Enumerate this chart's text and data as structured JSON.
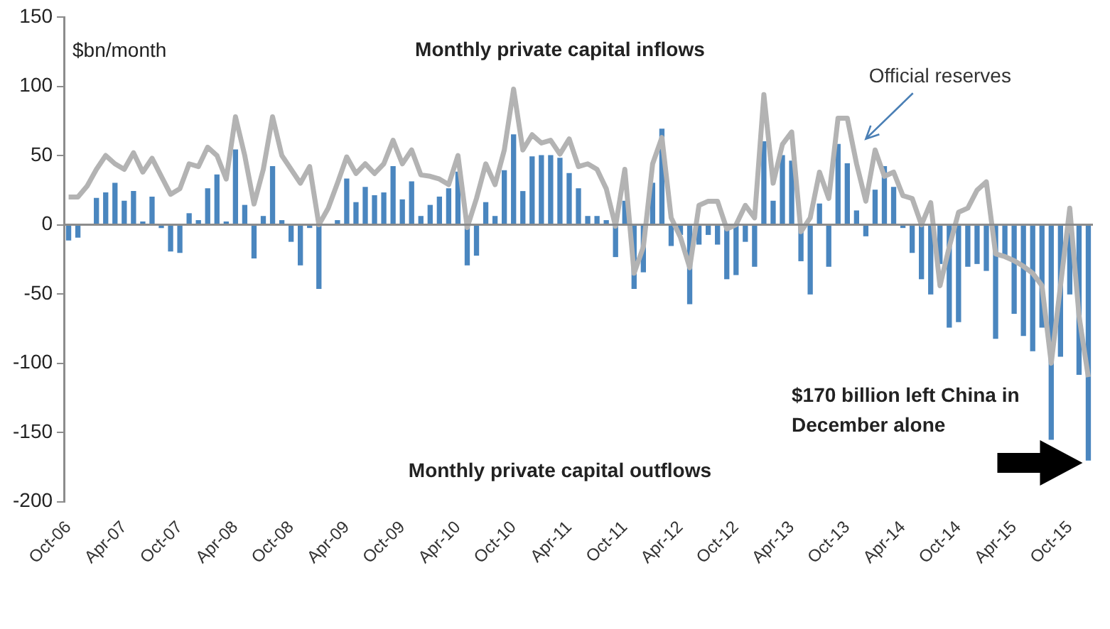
{
  "chart_data": {
    "type": "bar",
    "categories": [
      "Oct-06",
      null,
      null,
      null,
      null,
      null,
      "Apr-07",
      null,
      null,
      null,
      null,
      null,
      "Oct-07",
      null,
      null,
      null,
      null,
      null,
      "Apr-08",
      null,
      null,
      null,
      null,
      null,
      "Oct-08",
      null,
      null,
      null,
      null,
      null,
      "Apr-09",
      null,
      null,
      null,
      null,
      null,
      "Oct-09",
      null,
      null,
      null,
      null,
      null,
      "Apr-10",
      null,
      null,
      null,
      null,
      null,
      "Oct-10",
      null,
      null,
      null,
      null,
      null,
      "Apr-11",
      null,
      null,
      null,
      null,
      null,
      "Oct-11",
      null,
      null,
      null,
      null,
      null,
      "Apr-12",
      null,
      null,
      null,
      null,
      null,
      "Oct-12",
      null,
      null,
      null,
      null,
      null,
      "Apr-13",
      null,
      null,
      null,
      null,
      null,
      "Oct-13",
      null,
      null,
      null,
      null,
      null,
      "Apr-14",
      null,
      null,
      null,
      null,
      null,
      "Oct-14",
      null,
      null,
      null,
      null,
      null,
      "Apr-15",
      null,
      null,
      null,
      null,
      null,
      "Oct-15",
      null,
      null
    ],
    "series": [
      {
        "color": "#4a86bf",
        "values": [
          -11,
          -9,
          0,
          19,
          23,
          30,
          17,
          24,
          2,
          20,
          -2,
          -19,
          -20,
          8,
          3,
          26,
          36,
          2,
          54,
          14,
          -24,
          6,
          42,
          3,
          -12,
          -29,
          -2,
          -46,
          0,
          3,
          33,
          16,
          27,
          21,
          23,
          42,
          18,
          31,
          6,
          14,
          20,
          26,
          38,
          -29,
          -22,
          16,
          6,
          39,
          65,
          24,
          49,
          50,
          50,
          48,
          37,
          26,
          6,
          6,
          3,
          -23,
          17,
          -46,
          -34,
          30,
          69,
          -15,
          -7,
          -57,
          -14,
          -7,
          -14,
          -39,
          -36,
          -12,
          -30,
          60,
          17,
          50,
          46,
          -26,
          -50,
          15,
          -30,
          58,
          44,
          10,
          -8,
          25,
          42,
          27,
          -2,
          -20,
          -39,
          -50,
          -28,
          -74,
          -70,
          -30,
          -28,
          -33,
          -82,
          -22,
          -64,
          -80,
          -91,
          -74,
          -155,
          -95,
          -50,
          -108,
          -170
        ]
      },
      {
        "type": "line",
        "name": "Official reserves",
        "color": "#b3b3b3",
        "values": [
          20,
          20,
          28,
          40,
          50,
          44,
          40,
          52,
          38,
          48,
          35,
          22,
          26,
          44,
          42,
          56,
          50,
          33,
          78,
          50,
          15,
          40,
          78,
          50,
          40,
          30,
          42,
          0,
          12,
          30,
          49,
          37,
          44,
          37,
          44,
          61,
          44,
          54,
          36,
          35,
          33,
          29,
          50,
          -2,
          19,
          44,
          29,
          54,
          98,
          54,
          65,
          59,
          61,
          51,
          62,
          42,
          44,
          40,
          26,
          -1,
          40,
          -35,
          -16,
          44,
          63,
          5,
          -9,
          -31,
          14,
          17,
          17,
          -3,
          0,
          14,
          5,
          94,
          30,
          58,
          67,
          -5,
          5,
          38,
          19,
          77,
          77,
          44,
          17,
          54,
          35,
          38,
          21,
          19,
          0,
          16,
          -44,
          -16,
          9,
          12,
          25,
          31,
          -21,
          -23,
          -26,
          -30,
          -35,
          -44,
          -100,
          -44,
          12,
          -66,
          -110
        ]
      }
    ],
    "ylabel": "$bn/month",
    "ylim": [
      -200,
      150
    ],
    "yticks": [
      -200,
      -150,
      -100,
      -50,
      0,
      50,
      100,
      150
    ],
    "grid": false,
    "ref_lines": [
      {
        "axis": "y",
        "value": 0,
        "color": "#8c8c8c"
      }
    ],
    "legend": false,
    "marker": "none",
    "annotations": [
      "Monthly private capital inflows",
      "Monthly private capital outflows",
      "$170 billion left China in December alone"
    ]
  }
}
